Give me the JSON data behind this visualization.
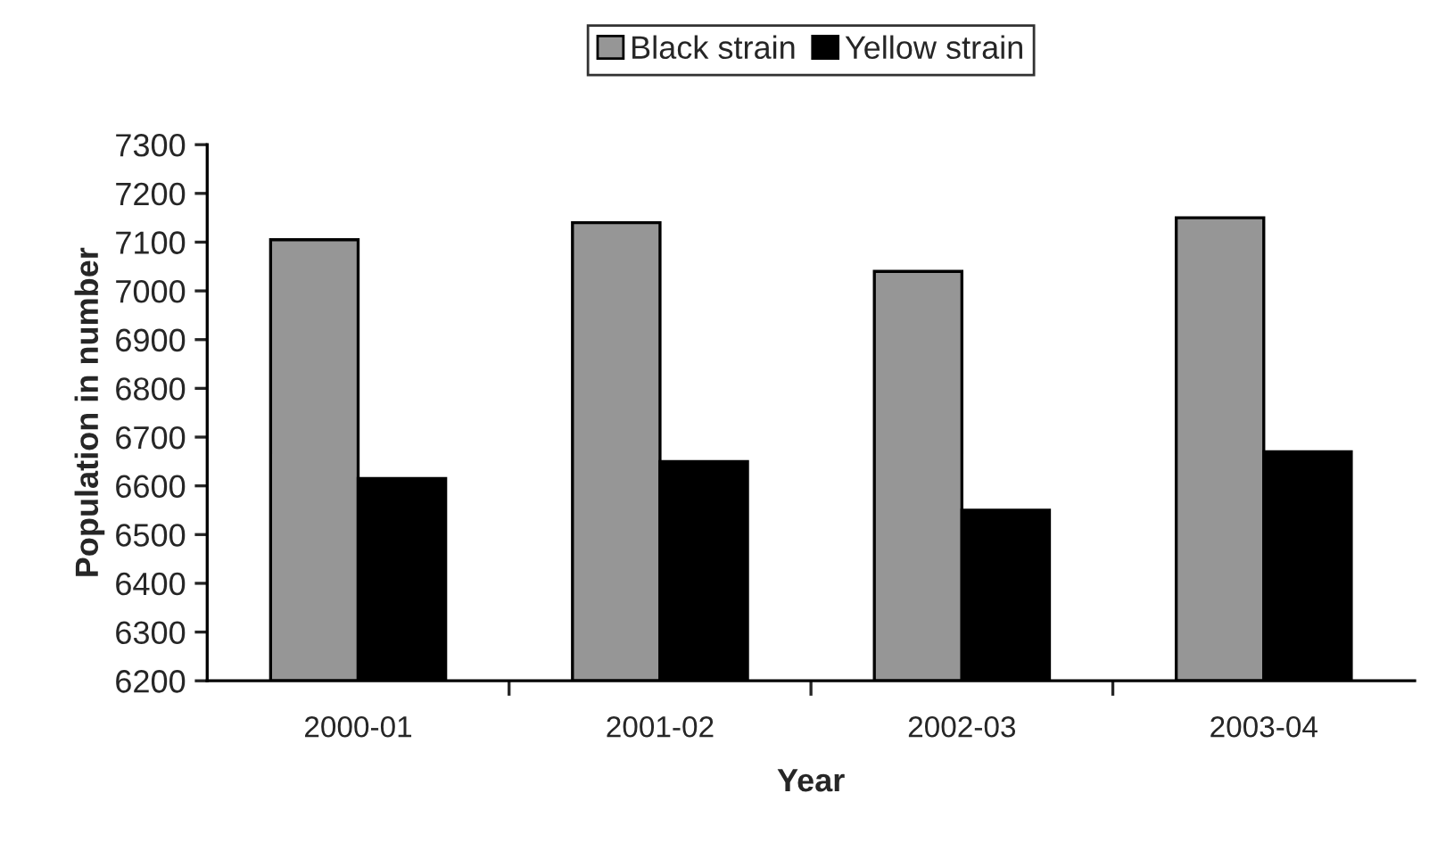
{
  "chart_data": {
    "type": "bar",
    "xlabel": "Year",
    "ylabel": "Population in number",
    "categories": [
      "2000-01",
      "2001-02",
      "2002-03",
      "2003-04"
    ],
    "series": [
      {
        "name": "Black strain",
        "color": "#969696",
        "values": [
          7105,
          7140,
          7040,
          7150
        ]
      },
      {
        "name": "Yellow strain",
        "color": "#000000",
        "values": [
          6615,
          6650,
          6550,
          6670
        ]
      }
    ],
    "ylim": [
      6200,
      7300
    ],
    "yticks": [
      6200,
      6300,
      6400,
      6500,
      6600,
      6700,
      6800,
      6900,
      7000,
      7100,
      7200,
      7300
    ],
    "grid": false,
    "legend": "top"
  }
}
